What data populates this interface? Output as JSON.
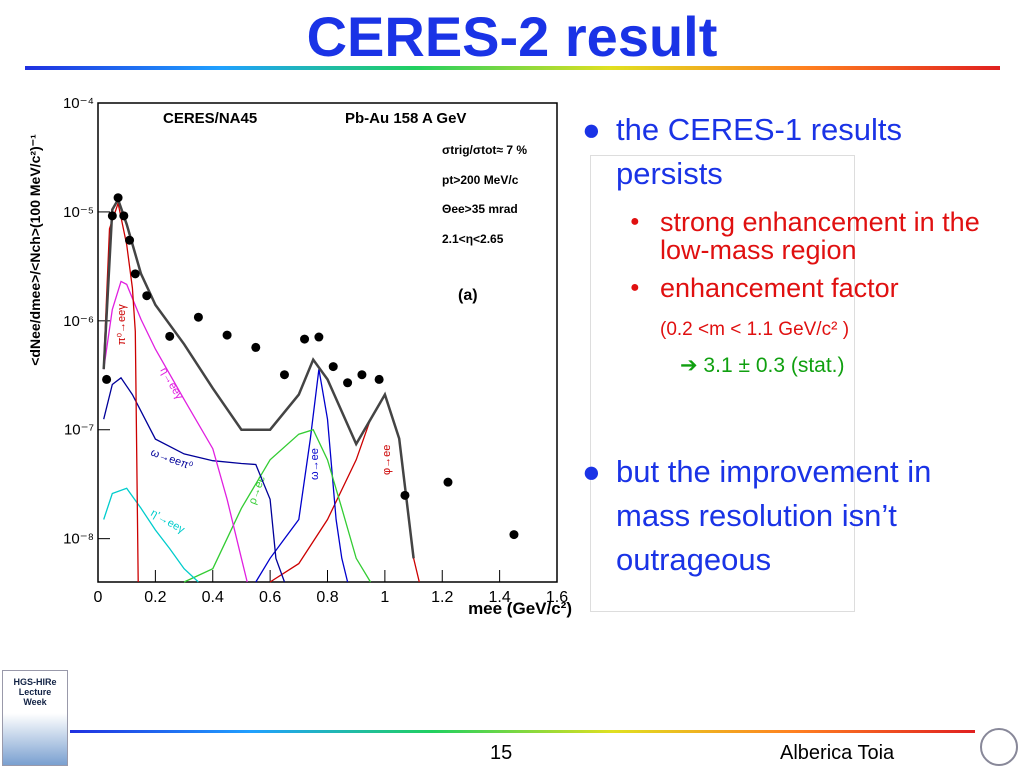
{
  "slide": {
    "title": "CERES-2 result",
    "bullets": [
      {
        "text": "the CERES-1 results persists",
        "subs": [
          {
            "text": "strong enhancement in the low-mass region"
          },
          {
            "text": "enhancement factor",
            "detail": "(0.2 <m < 1.1 GeV/c² )",
            "result": "➔ 3.1 ± 0.3 (stat.)"
          }
        ]
      },
      {
        "text": "but the improvement in mass resolution isn’t outrageous"
      }
    ],
    "footer": {
      "page": "15",
      "author": "Alberica Toia",
      "logo": "HGS-HIRe Lecture Week"
    }
  },
  "chart_data": {
    "type": "scatter",
    "log_y": true,
    "xlabel": "mee (GeV/c²)",
    "ylabel": "<dNee/dmee>/<Nch>(100 MeV/c²)⁻¹",
    "annotations": [
      "CERES/NA45",
      "Pb-Au 158 A GeV",
      "σtrig/σtot≈ 7 %",
      "pt>200 MeV/c",
      "Θee>35 mrad",
      "2.1<η<2.65",
      "(a)"
    ],
    "xlim": [
      0,
      1.6
    ],
    "xticks": [
      0,
      0.2,
      0.4,
      0.6,
      0.8,
      1,
      1.2,
      1.4,
      1.6
    ],
    "ylim": [
      4e-09,
      0.0001
    ],
    "yticks": [
      {
        "value": 1e-08,
        "label": "10⁻⁸"
      },
      {
        "value": 1e-07,
        "label": "10⁻⁷"
      },
      {
        "value": 1e-06,
        "label": "10⁻⁶"
      },
      {
        "value": 1e-05,
        "label": "10⁻⁵"
      },
      {
        "value": 0.0001,
        "label": "10⁻⁴"
      }
    ],
    "series": [
      {
        "mode": "markers",
        "color": "#000000",
        "x": [
          0.03,
          0.05,
          0.07,
          0.09,
          0.11,
          0.13,
          0.17,
          0.25,
          0.35,
          0.45,
          0.55,
          0.65,
          0.72,
          0.77,
          0.82,
          0.87,
          0.92,
          0.98,
          1.07,
          1.22,
          1.45
        ],
        "values": [
          2.9e-07,
          9.2e-06,
          1.35e-05,
          9.2e-06,
          5.5e-06,
          2.7e-06,
          1.7e-06,
          7.2e-07,
          1.08e-06,
          7.4e-07,
          5.7e-07,
          3.2e-07,
          6.8e-07,
          7.1e-07,
          3.8e-07,
          2.7e-07,
          3.2e-07,
          2.9e-07,
          2.5e-08,
          3.3e-08,
          1.09e-08
        ]
      },
      {
        "mode": "lines",
        "color": "#444444",
        "x": [
          0.02,
          0.05,
          0.07,
          0.1,
          0.15,
          0.2,
          0.3,
          0.4,
          0.5,
          0.6,
          0.7,
          0.75,
          0.8,
          0.9,
          1,
          1.05,
          1.1
        ],
        "values": [
          3.6e-07,
          1.05e-05,
          1.3e-05,
          7.7e-06,
          2.7e-06,
          1.4e-06,
          6.1e-07,
          2.4e-07,
          1e-07,
          1e-07,
          2.1e-07,
          4.4e-07,
          2.9e-07,
          7.4e-08,
          2.1e-07,
          8.3e-08,
          6.6e-09
        ]
      },
      {
        "mode": "lines",
        "name": "π⁰→eeγ",
        "color": "#cc0000",
        "x": [
          0.02,
          0.04,
          0.07,
          0.1,
          0.12,
          0.13,
          0.14
        ],
        "values": [
          4e-07,
          7e-06,
          1.2e-05,
          5e-06,
          2e-06,
          8e-07,
          4e-09
        ]
      },
      {
        "mode": "lines",
        "name": "η→eeγ",
        "color": "#e020e0",
        "x": [
          0.02,
          0.05,
          0.08,
          0.1,
          0.15,
          0.2,
          0.3,
          0.4,
          0.45,
          0.5,
          0.52
        ],
        "values": [
          3.6e-07,
          1.27e-06,
          2.3e-06,
          2.16e-06,
          1.03e-06,
          5.5e-07,
          1.9e-07,
          6.7e-08,
          2.3e-08,
          6.6e-09,
          4e-09
        ]
      },
      {
        "mode": "lines",
        "name": "ω→eeπ⁰",
        "color": "#000099",
        "x": [
          0.02,
          0.05,
          0.08,
          0.12,
          0.2,
          0.3,
          0.4,
          0.5,
          0.55,
          0.6,
          0.62,
          0.65
        ],
        "values": [
          1.25e-07,
          2.6e-07,
          3e-07,
          2.1e-07,
          8.2e-08,
          6e-08,
          5.2e-08,
          4.9e-08,
          4.8e-08,
          2.3e-08,
          6.6e-09,
          4e-09
        ]
      },
      {
        "mode": "lines",
        "name": "η'→eeγ",
        "color": "#00cccc",
        "x": [
          0.02,
          0.05,
          0.1,
          0.15,
          0.2,
          0.25,
          0.3,
          0.35
        ],
        "values": [
          1.5e-08,
          2.6e-08,
          2.9e-08,
          1.9e-08,
          1.2e-08,
          8.1e-09,
          5.3e-09,
          4e-09
        ]
      },
      {
        "mode": "lines",
        "name": "ρ→ee",
        "color": "#33cc33",
        "x": [
          0.3,
          0.4,
          0.5,
          0.6,
          0.7,
          0.75,
          0.8,
          0.85,
          0.9,
          0.95
        ],
        "values": [
          4e-09,
          5.3e-09,
          1.9e-08,
          5.3e-08,
          9.1e-08,
          1e-07,
          5.3e-08,
          1.9e-08,
          6.6e-09,
          4e-09
        ]
      },
      {
        "mode": "lines",
        "name": "ω→ee",
        "color": "#0000cc",
        "x": [
          0.55,
          0.6,
          0.65,
          0.7,
          0.74,
          0.77,
          0.8,
          0.83,
          0.85,
          0.87
        ],
        "values": [
          4e-09,
          6.6e-09,
          1e-08,
          1.5e-08,
          8.2e-08,
          3.6e-07,
          1.25e-07,
          1.5e-08,
          6.6e-09,
          4e-09
        ]
      },
      {
        "mode": "lines",
        "name": "φ→ee",
        "color": "#cc0000",
        "x": [
          0.6,
          0.7,
          0.8,
          0.9,
          0.95,
          1,
          1.05,
          1.1,
          1.12
        ],
        "values": [
          4e-09,
          5.9e-09,
          1.5e-08,
          5.3e-08,
          1.25e-07,
          2.1e-07,
          8.2e-08,
          6.6e-09,
          4e-09
        ]
      }
    ]
  }
}
